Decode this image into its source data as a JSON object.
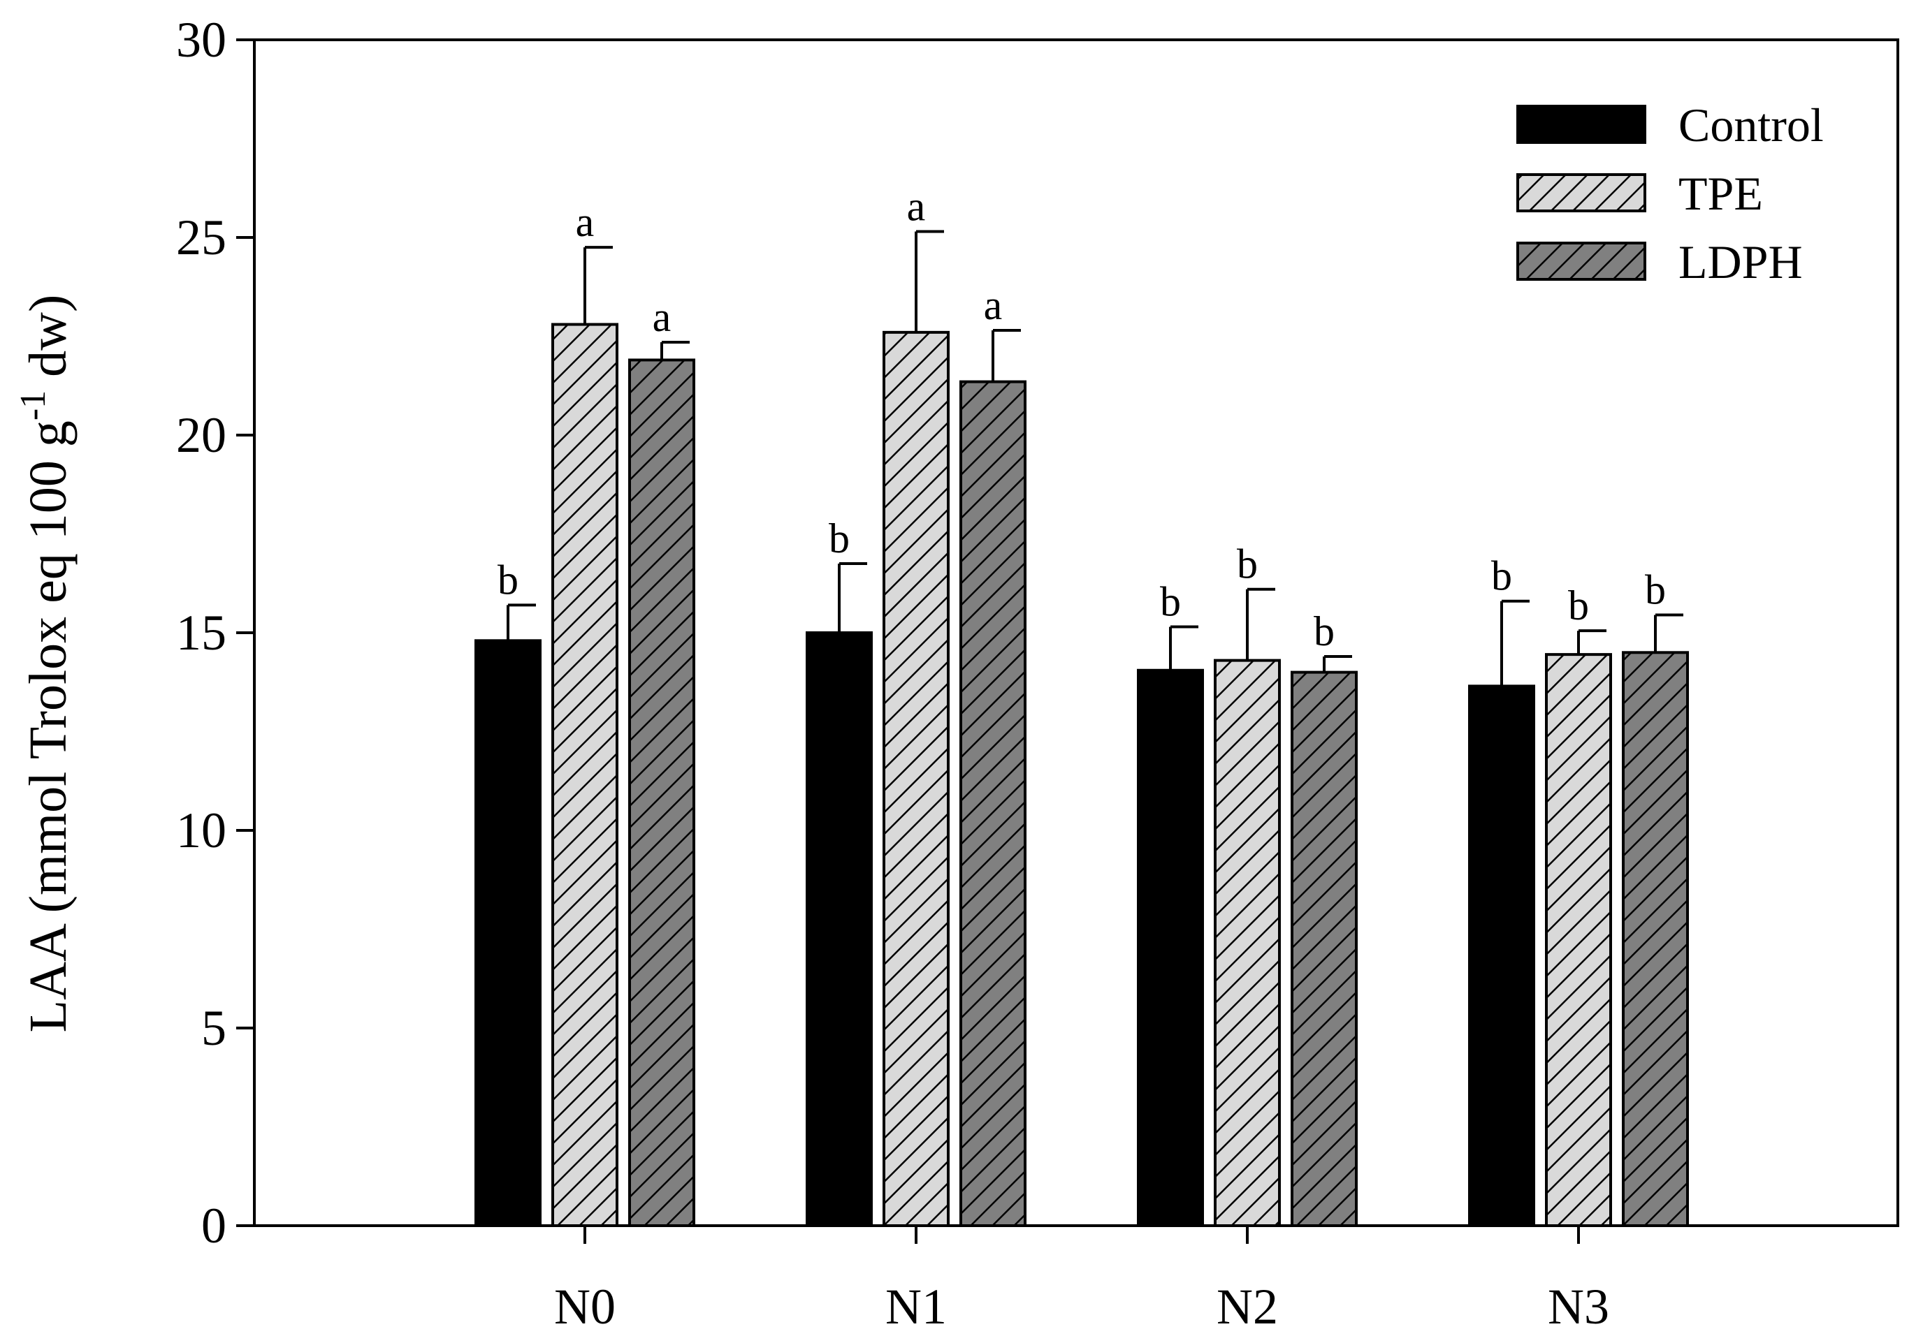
{
  "chart_data": {
    "type": "bar",
    "ylabel_main": "LAA (mmol Trolox  eq 100 g",
    "ylabel_sup": "-1",
    "ylabel_tail": " dw)",
    "xlabel": "",
    "ylim": [
      0,
      30
    ],
    "yticks": [
      "0",
      "5",
      "10",
      "15",
      "20",
      "25",
      "30"
    ],
    "categories": [
      "N0",
      "N1",
      "N2",
      "N3"
    ],
    "series": [
      {
        "name": "Control",
        "fill": "#000000",
        "pattern": "solid",
        "values": [
          14.8,
          15.0,
          14.05,
          13.65
        ],
        "errors": [
          0.9,
          1.75,
          1.1,
          2.15
        ],
        "letters": [
          "b",
          "b",
          "b",
          "b"
        ]
      },
      {
        "name": "TPE",
        "fill": "#d9d9d9",
        "pattern": "hatch-light",
        "values": [
          22.8,
          22.6,
          14.3,
          14.45
        ],
        "errors": [
          1.95,
          2.55,
          1.8,
          0.6
        ],
        "letters": [
          "a",
          "a",
          "b",
          "b"
        ]
      },
      {
        "name": "LDPH",
        "fill": "#808080",
        "pattern": "hatch-dark",
        "values": [
          21.9,
          21.35,
          14.0,
          14.5
        ],
        "errors": [
          0.45,
          1.3,
          0.4,
          0.95
        ],
        "letters": [
          "a",
          "a",
          "b",
          "b"
        ]
      }
    ],
    "legend_position": "top-right",
    "grid": false
  }
}
